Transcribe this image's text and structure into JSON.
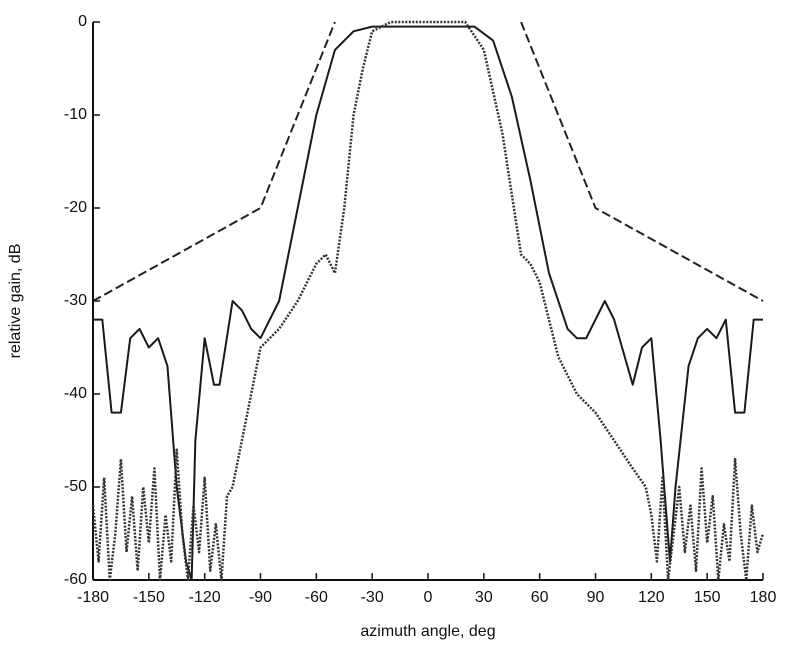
{
  "chart_data": {
    "type": "line",
    "xlabel": "azimuth angle, deg",
    "ylabel": "relative gain, dB",
    "xlim": [
      -180,
      180
    ],
    "ylim": [
      -60,
      0
    ],
    "xticks": [
      -180,
      -150,
      -120,
      -90,
      -60,
      -30,
      0,
      30,
      60,
      90,
      120,
      150,
      180
    ],
    "yticks": [
      -60,
      -50,
      -40,
      -30,
      -20,
      -10,
      0
    ],
    "series": [
      {
        "color": "#222222",
        "style": "dashed",
        "x": [
          -180,
          -90,
          -50,
          0,
          50,
          90,
          180
        ],
        "values": [
          -30,
          -20,
          0,
          null,
          0,
          -20,
          -30
        ]
      },
      {
        "color": "#1a1a1a",
        "style": "solid",
        "x": [
          -180,
          -175,
          -170,
          -165,
          -160,
          -155,
          -150,
          -145,
          -140,
          -135,
          -130,
          -127,
          -125,
          -120,
          -115,
          -112,
          -105,
          -100,
          -95,
          -90,
          -80,
          -70,
          -60,
          -50,
          -40,
          -30,
          0,
          25,
          35,
          45,
          55,
          65,
          75,
          80,
          85,
          90,
          95,
          100,
          110,
          115,
          120,
          125,
          130,
          133,
          140,
          145,
          150,
          155,
          160,
          165,
          170,
          175,
          180
        ],
        "values": [
          -32,
          -32,
          -42,
          -42,
          -34,
          -33,
          -35,
          -34,
          -37,
          -50,
          -58,
          -60,
          -45,
          -34,
          -39,
          -39,
          -30,
          -31,
          -33,
          -34,
          -30,
          -20,
          -10,
          -3,
          -1,
          -0.5,
          -0.5,
          -0.5,
          -2,
          -8,
          -17,
          -27,
          -33,
          -34,
          -34,
          -32,
          -30,
          -32,
          -39,
          -35,
          -34,
          -45,
          -58,
          -50,
          -37,
          -34,
          -33,
          -34,
          -32,
          -42,
          -42,
          -32,
          -32
        ]
      },
      {
        "color": "#333333",
        "style": "dotted",
        "x": [
          -180,
          -177,
          -174,
          -171,
          -168,
          -165,
          -162,
          -159,
          -156,
          -153,
          -150,
          -147,
          -144,
          -141,
          -138,
          -135,
          -132,
          -129,
          -126,
          -123,
          -120,
          -117,
          -114,
          -111,
          -108,
          -105,
          -100,
          -95,
          -90,
          -80,
          -70,
          -60,
          -55,
          -50,
          -45,
          -40,
          -35,
          -30,
          -20,
          20,
          30,
          40,
          50,
          55,
          60,
          70,
          80,
          90,
          100,
          110,
          117,
          120,
          123,
          126,
          129,
          132,
          135,
          138,
          141,
          144,
          147,
          150,
          153,
          156,
          159,
          162,
          165,
          168,
          171,
          174,
          177,
          180
        ],
        "values": [
          -52,
          -58,
          -49,
          -60,
          -55,
          -47,
          -57,
          -51,
          -59,
          -50,
          -56,
          -48,
          -60,
          -53,
          -58,
          -46,
          -55,
          -60,
          -52,
          -57,
          -49,
          -59,
          -54,
          -60,
          -51,
          -50,
          -45,
          -40,
          -35,
          -33,
          -30,
          -26,
          -25,
          -27,
          -20,
          -10,
          -5,
          -1,
          0,
          0,
          -3,
          -12,
          -25,
          -26,
          -28,
          -36,
          -40,
          -42,
          -45,
          -48,
          -50,
          -53,
          -58,
          -49,
          -60,
          -55,
          -50,
          -57,
          -52,
          -59,
          -48,
          -56,
          -51,
          -60,
          -54,
          -58,
          -47,
          -55,
          -60,
          -52,
          -57,
          -55
        ]
      }
    ]
  }
}
